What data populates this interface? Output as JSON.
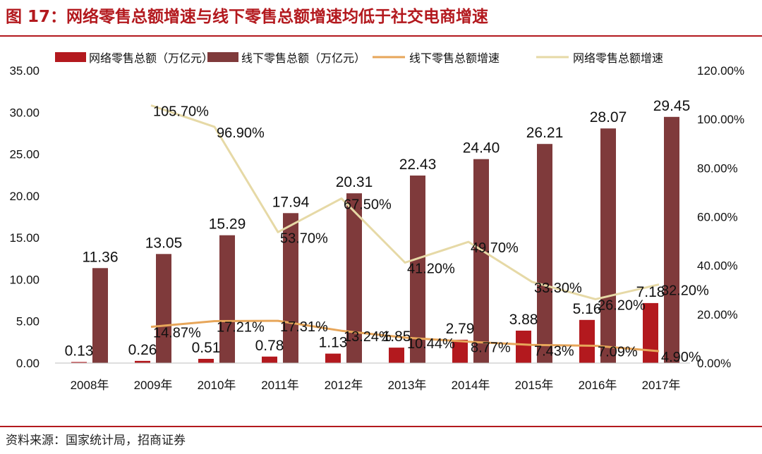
{
  "title": "图 17：网络零售总额增速与线下零售总额增速均低于社交电商增速",
  "source": "资料来源：国家统计局，招商证券",
  "colors": {
    "online_bar": "#b3191e",
    "offline_bar": "#7f3a3b",
    "offline_growth_line": "#e7a65a",
    "online_growth_line": "#e6d9a6",
    "accent": "#b3191e"
  },
  "chart_data": {
    "type": "bar",
    "categories": [
      "2008年",
      "2009年",
      "2010年",
      "2011年",
      "2012年",
      "2013年",
      "2014年",
      "2015年",
      "2016年",
      "2017年"
    ],
    "series": [
      {
        "name": "网络零售总额（万亿元）",
        "kind": "bar",
        "axis": "left",
        "values": [
          0.13,
          0.26,
          0.51,
          0.78,
          1.13,
          1.85,
          2.79,
          3.88,
          5.16,
          7.18
        ],
        "labels": [
          "0.13",
          "0.26",
          "0.51",
          "0.78",
          "1.13",
          "1.85",
          "2.79",
          "3.88",
          "5.16",
          "7.18"
        ]
      },
      {
        "name": "线下零售总额（万亿元）",
        "kind": "bar",
        "axis": "left",
        "values": [
          11.36,
          13.05,
          15.29,
          17.94,
          20.31,
          22.43,
          24.4,
          26.21,
          28.07,
          29.45
        ],
        "labels": [
          "11.36",
          "13.05",
          "15.29",
          "17.94",
          "20.31",
          "22.43",
          "24.40",
          "26.21",
          "28.07",
          "29.45"
        ]
      },
      {
        "name": "线下零售总额增速",
        "kind": "line",
        "axis": "right",
        "values": [
          null,
          14.87,
          17.21,
          17.31,
          13.24,
          10.44,
          8.77,
          7.43,
          7.09,
          4.9
        ],
        "labels": [
          "",
          "14.87%",
          "17.21%",
          "17.31%",
          "13.24%",
          "10.44%",
          "8.77%",
          "7.43%",
          "7.09%",
          "4.90%"
        ]
      },
      {
        "name": "网络零售总额增速",
        "kind": "line",
        "axis": "right",
        "values": [
          null,
          105.7,
          96.9,
          53.7,
          67.5,
          41.2,
          49.7,
          33.3,
          26.2,
          32.2
        ],
        "labels": [
          "",
          "105.70%",
          "96.90%",
          "53.70%",
          "67.50%",
          "41.20%",
          "49.70%",
          "33.30%",
          "26.20%",
          "32.20%"
        ]
      }
    ],
    "y_left": {
      "range": [
        0,
        35
      ],
      "ticks": [
        "0.00",
        "5.00",
        "10.00",
        "15.00",
        "20.00",
        "25.00",
        "30.00",
        "35.00"
      ]
    },
    "y_right": {
      "range": [
        0,
        120
      ],
      "ticks": [
        "0.00%",
        "20.00%",
        "40.00%",
        "60.00%",
        "80.00%",
        "100.00%",
        "120.00%"
      ]
    },
    "grid": false,
    "legend": "top"
  }
}
